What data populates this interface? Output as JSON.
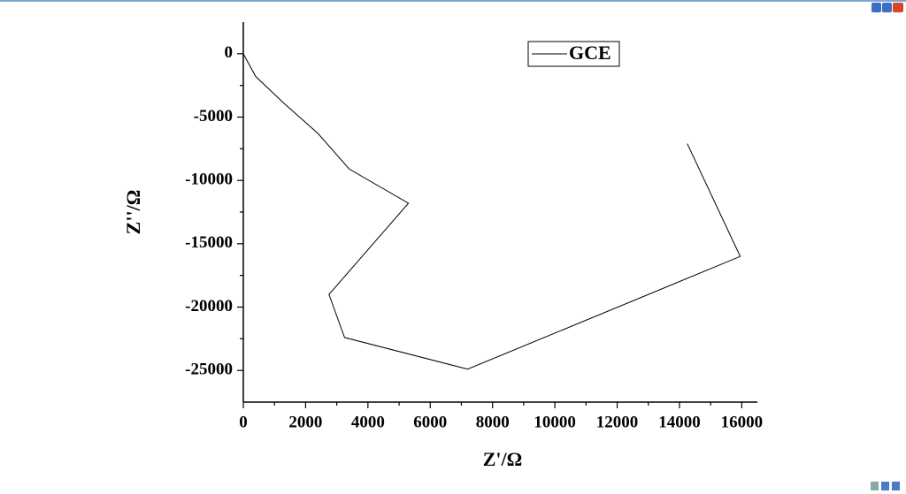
{
  "chart_data": {
    "type": "line",
    "x_label": "Z'/Ω",
    "y_label": "Z''/Ω",
    "x": [
      0,
      400,
      1300,
      2400,
      3400,
      5300,
      2750,
      3250,
      7200,
      15950,
      14250
    ],
    "series": [
      {
        "name": "GCE",
        "color": "#000000",
        "values": [
          0,
          -1800,
          -3900,
          -6300,
          -9100,
          -11800,
          -19000,
          -22400,
          -24900,
          -16000,
          -7100
        ]
      }
    ],
    "xlim": [
      0,
      16500
    ],
    "xticks": [
      0,
      2000,
      4000,
      6000,
      8000,
      10000,
      12000,
      14000,
      16000
    ],
    "ylim": [
      -27500,
      2500
    ],
    "yticks": [
      0,
      -5000,
      -10000,
      -15000,
      -20000,
      -25000
    ],
    "grid": false,
    "legend": "top-center"
  }
}
